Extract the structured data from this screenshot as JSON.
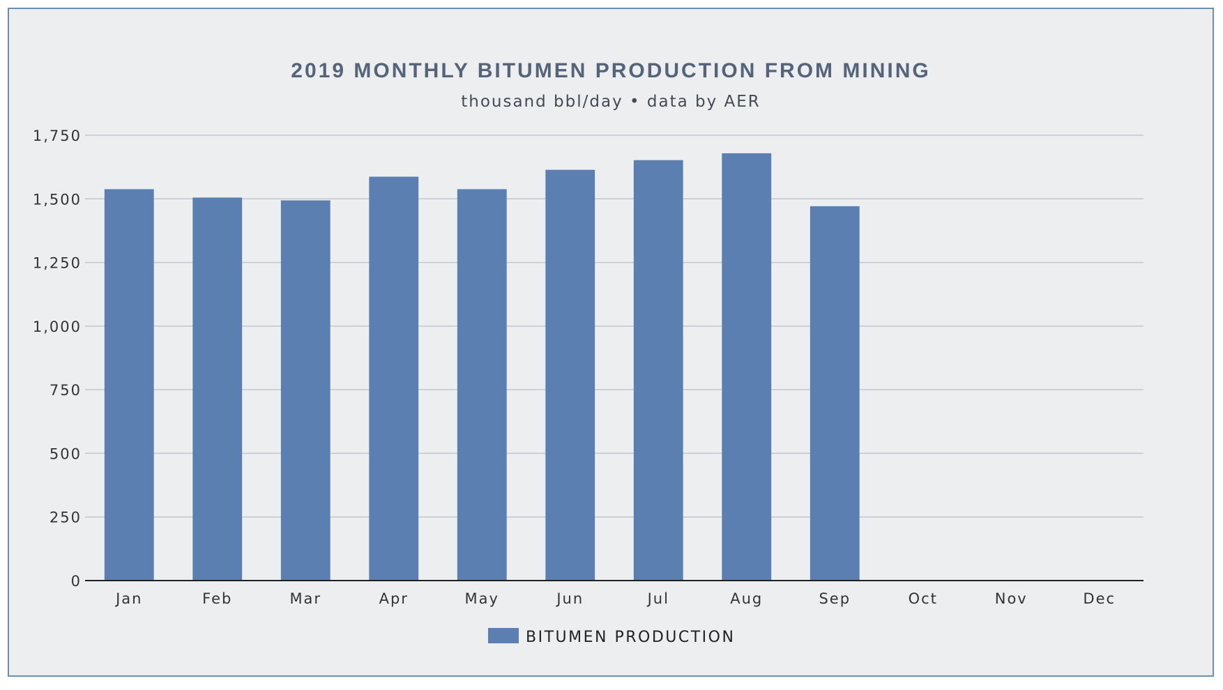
{
  "chart_data": {
    "type": "bar",
    "title": "2019 MONTHLY BITUMEN PRODUCTION FROM MINING",
    "subtitle": "thousand bbl/day • data by AER",
    "categories": [
      "Jan",
      "Feb",
      "Mar",
      "Apr",
      "May",
      "Jun",
      "Jul",
      "Aug",
      "Sep",
      "Oct",
      "Nov",
      "Dec"
    ],
    "series": [
      {
        "name": "BITUMEN PRODUCTION",
        "values": [
          1538,
          1505,
          1494,
          1587,
          1538,
          1614,
          1652,
          1679,
          1471,
          null,
          null,
          null
        ]
      }
    ],
    "y_ticks": [
      "0",
      "250",
      "500",
      "750",
      "1,000",
      "1,250",
      "1,500",
      "1,750"
    ],
    "ylim": [
      0,
      1750
    ],
    "xlabel": "",
    "ylabel": "",
    "grid": true,
    "legend_position": "bottom-center",
    "colors": {
      "bar": "#5b7fb0",
      "grid": "#c4c8cd",
      "axis": "#222222",
      "background": "#eceef0",
      "border": "#6f8db1"
    }
  }
}
